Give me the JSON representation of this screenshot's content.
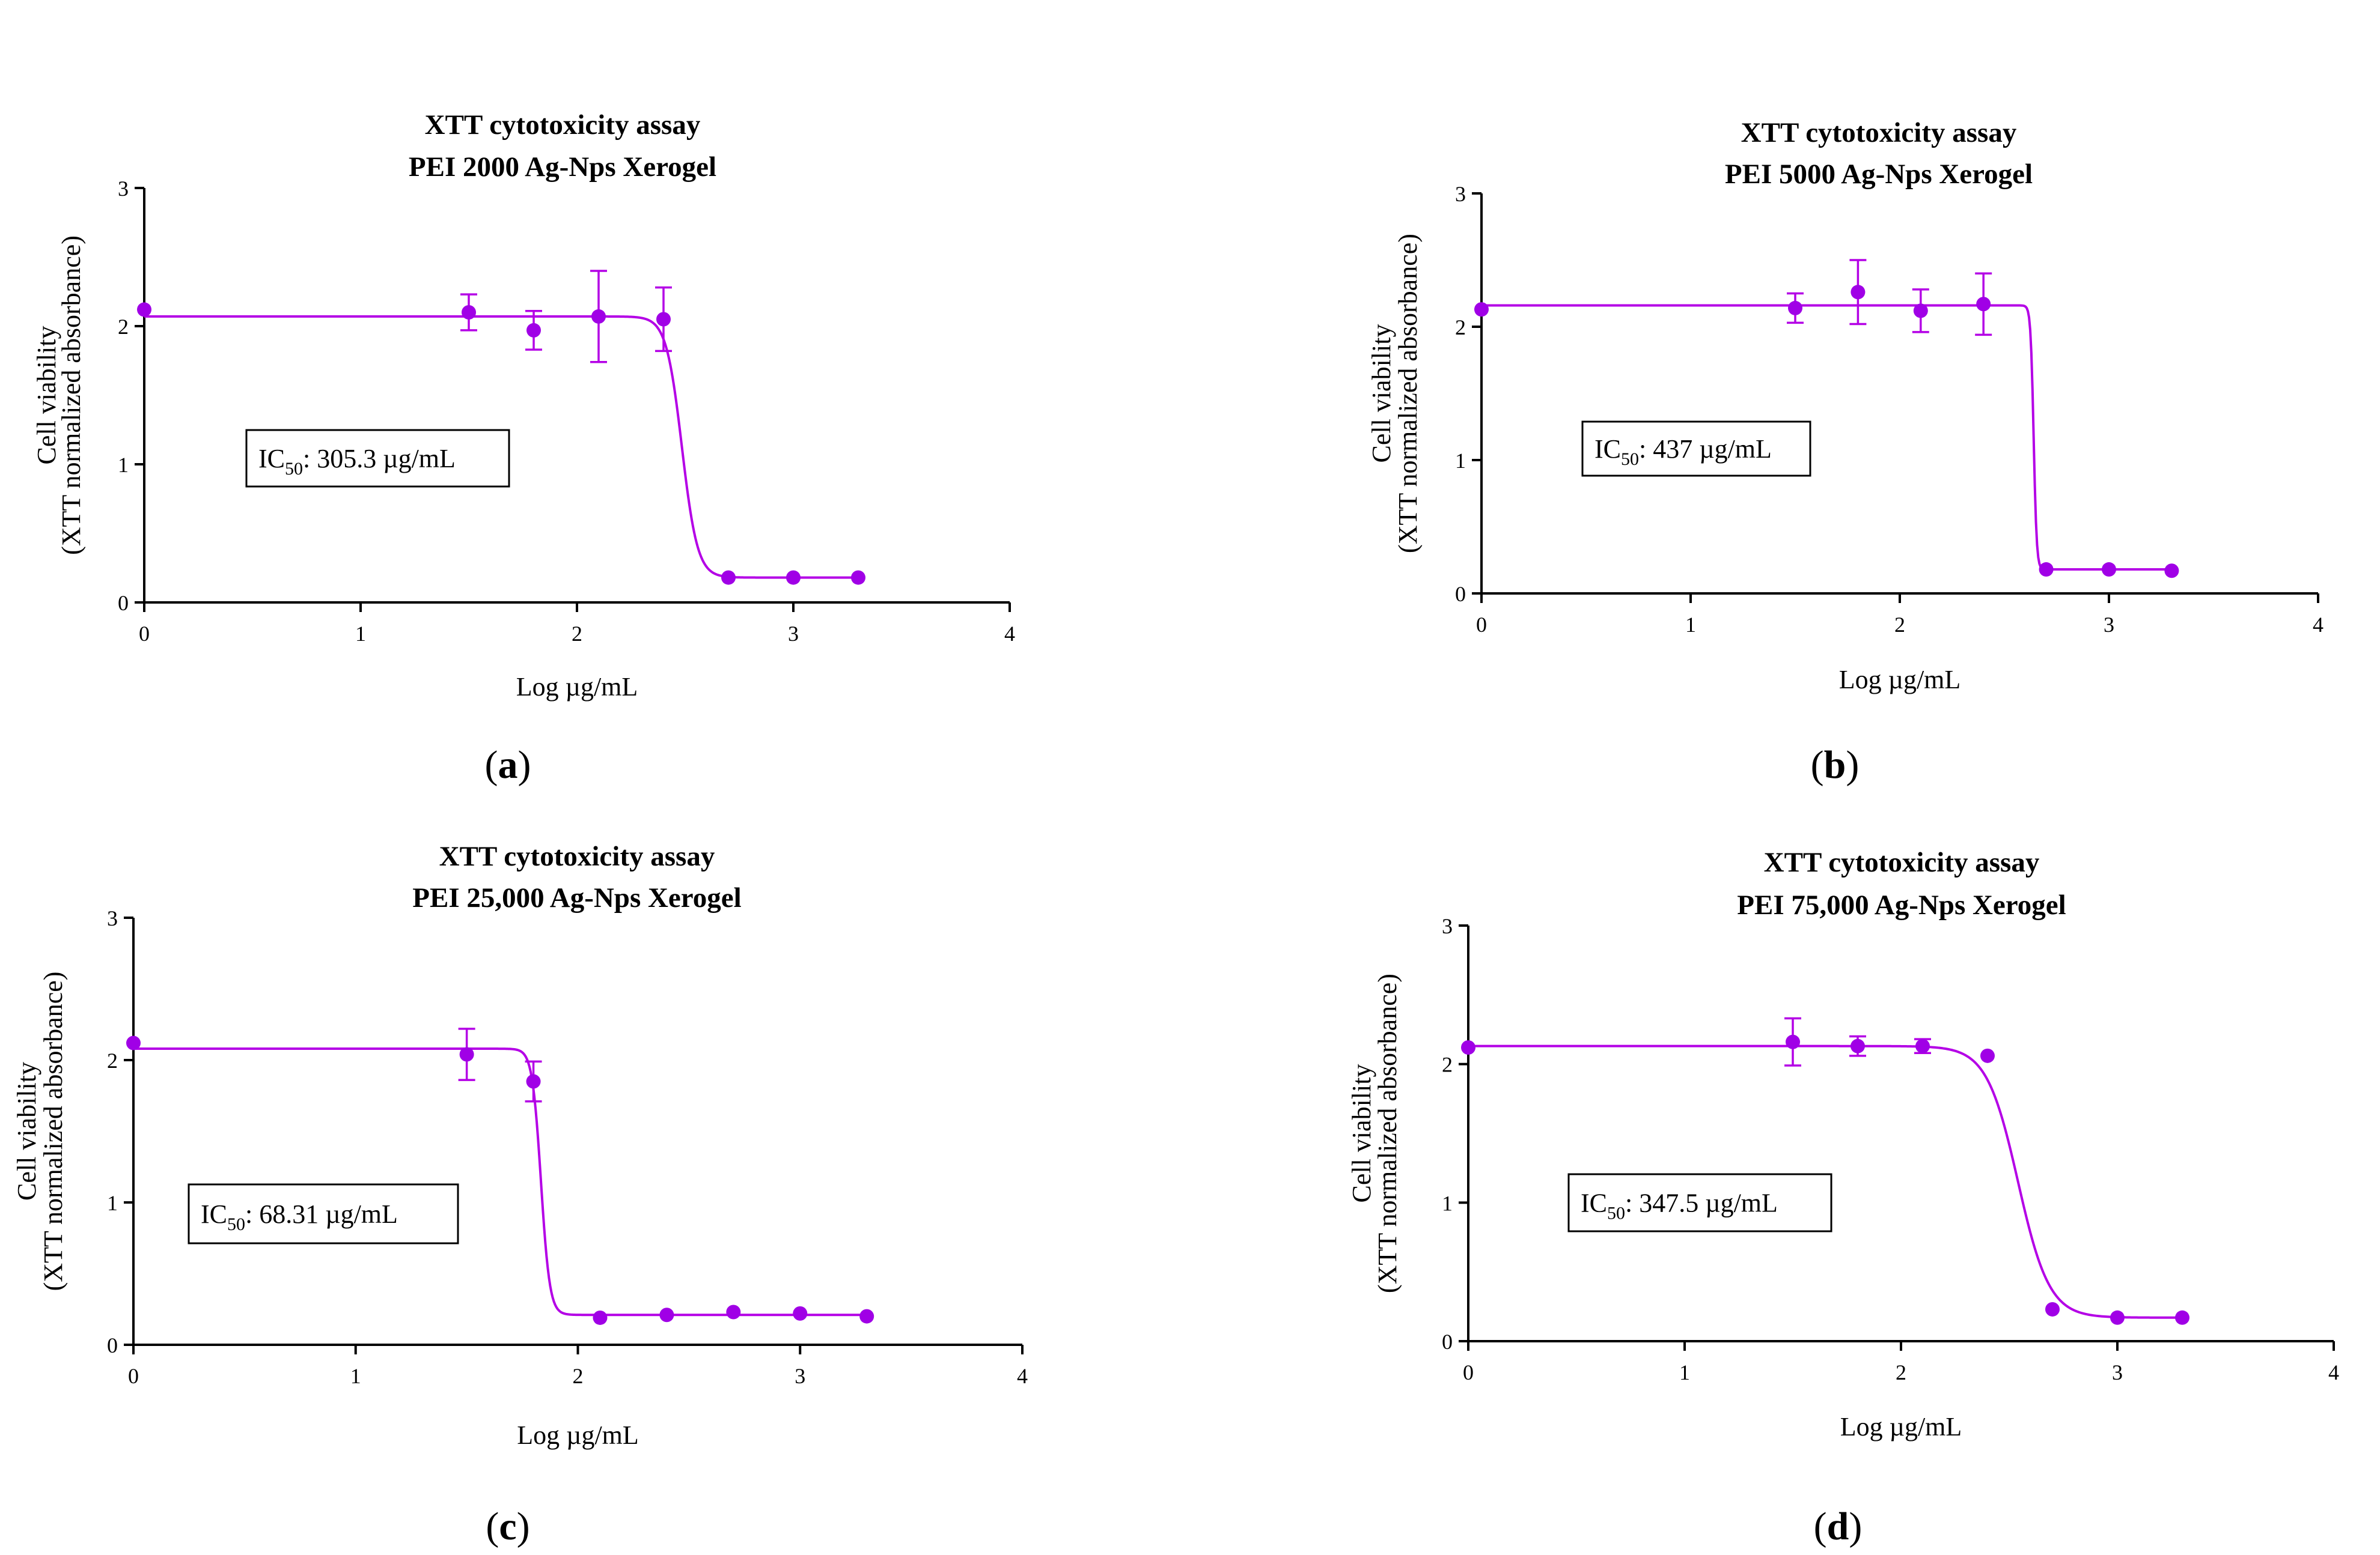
{
  "figure": {
    "series_color": "#a000e6",
    "fit_color": "#b400e6"
  },
  "chart_data": [
    {
      "type": "scatter",
      "panel_label": "a",
      "title_line1": "XTT cytotoxicity assay",
      "title_line2": "PEI 2000 Ag-Nps Xerogel",
      "xlabel": "Log µg/mL",
      "ylabel_line1": "Cell viability",
      "ylabel_line2": "(XTT normalized absorbance)",
      "xlim": [
        0,
        4
      ],
      "ylim": [
        0,
        3
      ],
      "xticks": [
        0,
        1,
        2,
        3,
        4
      ],
      "yticks": [
        0,
        1,
        2,
        3
      ],
      "ic50_label": "IC",
      "ic50_sub": "50",
      "ic50_value": ": 305.3 µg/mL",
      "points": [
        {
          "x": 0,
          "y": 2.12,
          "err": 0
        },
        {
          "x": 1.5,
          "y": 2.1,
          "err": 0.13
        },
        {
          "x": 1.8,
          "y": 1.97,
          "err": 0.14
        },
        {
          "x": 2.1,
          "y": 2.07,
          "err": 0.33
        },
        {
          "x": 2.4,
          "y": 2.05,
          "err": 0.23
        },
        {
          "x": 2.7,
          "y": 0.18,
          "err": 0
        },
        {
          "x": 3.0,
          "y": 0.18,
          "err": 0
        },
        {
          "x": 3.3,
          "y": 0.18,
          "err": 0
        }
      ],
      "fit": {
        "top": 2.07,
        "bottom": 0.18,
        "logIC50": 2.485,
        "hill": 12
      }
    },
    {
      "type": "scatter",
      "panel_label": "b",
      "title_line1": "XTT cytotoxicity assay",
      "title_line2": "PEI 5000 Ag-Nps Xerogel",
      "xlabel": "Log µg/mL",
      "ylabel_line1": "Cell viability",
      "ylabel_line2": "(XTT normalized absorbance)",
      "xlim": [
        0,
        4
      ],
      "ylim": [
        0,
        3
      ],
      "xticks": [
        0,
        1,
        2,
        3,
        4
      ],
      "yticks": [
        0,
        1,
        2,
        3
      ],
      "ic50_label": "IC",
      "ic50_sub": "50",
      "ic50_value": ": 437 µg/mL",
      "points": [
        {
          "x": 0,
          "y": 2.13,
          "err": 0
        },
        {
          "x": 1.5,
          "y": 2.14,
          "err": 0.11
        },
        {
          "x": 1.8,
          "y": 2.26,
          "err": 0.24
        },
        {
          "x": 2.1,
          "y": 2.12,
          "err": 0.16
        },
        {
          "x": 2.4,
          "y": 2.17,
          "err": 0.23
        },
        {
          "x": 2.7,
          "y": 0.18,
          "err": 0
        },
        {
          "x": 3.0,
          "y": 0.18,
          "err": 0
        },
        {
          "x": 3.3,
          "y": 0.17,
          "err": 0
        }
      ],
      "fit": {
        "top": 2.16,
        "bottom": 0.18,
        "logIC50": 2.64,
        "hill": 60
      }
    },
    {
      "type": "scatter",
      "panel_label": "c",
      "title_line1": "XTT cytotoxicity assay",
      "title_line2": "PEI 25,000 Ag-Nps Xerogel",
      "xlabel": "Log µg/mL",
      "ylabel_line1": "Cell viability",
      "ylabel_line2": "(XTT normalized absorbance)",
      "xlim": [
        0,
        4
      ],
      "ylim": [
        0,
        3
      ],
      "xticks": [
        0,
        1,
        2,
        3,
        4
      ],
      "yticks": [
        0,
        1,
        2,
        3
      ],
      "ic50_label": "IC",
      "ic50_sub": "50",
      "ic50_value": ": 68.31 µg/mL",
      "points": [
        {
          "x": 0,
          "y": 2.12,
          "err": 0
        },
        {
          "x": 1.5,
          "y": 2.04,
          "err": 0.18
        },
        {
          "x": 1.8,
          "y": 1.85,
          "err": 0.14
        },
        {
          "x": 2.1,
          "y": 0.19,
          "err": 0
        },
        {
          "x": 2.4,
          "y": 0.21,
          "err": 0
        },
        {
          "x": 2.7,
          "y": 0.23,
          "err": 0
        },
        {
          "x": 3.0,
          "y": 0.22,
          "err": 0
        },
        {
          "x": 3.3,
          "y": 0.2,
          "err": 0
        }
      ],
      "fit": {
        "top": 2.08,
        "bottom": 0.21,
        "logIC50": 1.834,
        "hill": 22
      }
    },
    {
      "type": "scatter",
      "panel_label": "d",
      "title_line1": "XTT cytotoxicity assay",
      "title_line2": "PEI 75,000 Ag-Nps Xerogel",
      "xlabel": "Log µg/mL",
      "ylabel_line1": "Cell viability",
      "ylabel_line2": "(XTT normalized absorbance)",
      "xlim": [
        0,
        4
      ],
      "ylim": [
        0,
        3
      ],
      "xticks": [
        0,
        1,
        2,
        3,
        4
      ],
      "yticks": [
        0,
        1,
        2,
        3
      ],
      "ic50_label": "IC",
      "ic50_sub": "50",
      "ic50_value": ": 347.5 µg/mL",
      "points": [
        {
          "x": 0,
          "y": 2.12,
          "err": 0
        },
        {
          "x": 1.5,
          "y": 2.16,
          "err": 0.17
        },
        {
          "x": 1.8,
          "y": 2.13,
          "err": 0.07
        },
        {
          "x": 2.1,
          "y": 2.13,
          "err": 0.05
        },
        {
          "x": 2.4,
          "y": 2.06,
          "err": 0
        },
        {
          "x": 2.7,
          "y": 0.23,
          "err": 0
        },
        {
          "x": 3.0,
          "y": 0.17,
          "err": 0
        },
        {
          "x": 3.3,
          "y": 0.17,
          "err": 0
        }
      ],
      "fit": {
        "top": 2.13,
        "bottom": 0.17,
        "logIC50": 2.541,
        "hill": 6
      }
    }
  ]
}
